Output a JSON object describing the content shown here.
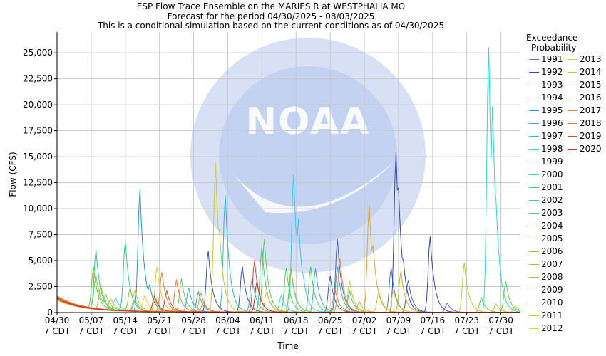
{
  "chart_data": {
    "type": "line",
    "title": [
      "ESP Flow Trace Ensemble on the MARIES R at WESTPHALIA MO",
      "Forecast for the period 04/30/2025 - 08/03/2025",
      "This is a conditional simulation based on the current conditions as of 04/30/2025"
    ],
    "xlabel": "Time",
    "ylabel": "Flow (CFS)",
    "ylim": [
      0,
      27000
    ],
    "xlim_days": [
      0,
      95
    ],
    "yticks": [
      0,
      2500,
      5000,
      7500,
      10000,
      12500,
      15000,
      17500,
      20000,
      22500,
      25000
    ],
    "ytick_labels": [
      "0",
      "2,500",
      "5,000",
      "7,500",
      "10,000",
      "12,500",
      "15,000",
      "17,500",
      "20,000",
      "22,500",
      "25,000"
    ],
    "xticks": [
      {
        "day": 0,
        "l1": "04/30",
        "l2": "7 CDT"
      },
      {
        "day": 7,
        "l1": "05/07",
        "l2": "7 CDT"
      },
      {
        "day": 14,
        "l1": "05/14",
        "l2": "7 CDT"
      },
      {
        "day": 21,
        "l1": "05/21",
        "l2": "7 CDT"
      },
      {
        "day": 28,
        "l1": "05/28",
        "l2": "7 CDT"
      },
      {
        "day": 35,
        "l1": "06/04",
        "l2": "7 CDT"
      },
      {
        "day": 42,
        "l1": "06/11",
        "l2": "7 CDT"
      },
      {
        "day": 49,
        "l1": "06/18",
        "l2": "7 CDT"
      },
      {
        "day": 56,
        "l1": "06/25",
        "l2": "7 CDT"
      },
      {
        "day": 63,
        "l1": "07/02",
        "l2": "7 CDT"
      },
      {
        "day": 70,
        "l1": "07/09",
        "l2": "7 CDT"
      },
      {
        "day": 77,
        "l1": "07/16",
        "l2": "7 CDT"
      },
      {
        "day": 84,
        "l1": "07/23",
        "l2": "7 CDT"
      },
      {
        "day": 91,
        "l1": "07/30",
        "l2": "7 CDT"
      }
    ],
    "grid": true,
    "legend_title": [
      "Exceedance",
      "Probability"
    ],
    "legend_placement": "right",
    "watermark": "NOAA - NATIONAL OCEANIC AND ATMOSPHERIC ADMINISTRATION - U.S. DEPARTMENT OF COMMERCE",
    "series": [
      {
        "name": "1991",
        "color": "#5577dd",
        "peaks": [
          [
            68.5,
            4300
          ],
          [
            80,
            900
          ]
        ]
      },
      {
        "name": "1992",
        "color": "#3344bb",
        "peaks": [
          [
            69.5,
            15500
          ],
          [
            70,
            12000
          ],
          [
            71,
            5000
          ],
          [
            76.5,
            7300
          ]
        ]
      },
      {
        "name": "1993",
        "color": "#4466cc",
        "peaks": [
          [
            57.5,
            7000
          ],
          [
            72,
            3100
          ]
        ]
      },
      {
        "name": "1994",
        "color": "#3355bb",
        "peaks": [
          [
            31,
            5900
          ],
          [
            38,
            4400
          ],
          [
            56,
            3500
          ]
        ]
      },
      {
        "name": "1995",
        "color": "#2299cc",
        "peaks": [
          [
            17,
            11800
          ],
          [
            19,
            2600
          ],
          [
            29,
            1900
          ]
        ]
      },
      {
        "name": "1996",
        "color": "#33aadd",
        "peaks": [
          [
            27,
            2300
          ],
          [
            53,
            4200
          ],
          [
            57.5,
            4400
          ]
        ]
      },
      {
        "name": "1997",
        "color": "#22bbdd",
        "peaks": [
          [
            34.5,
            11200
          ],
          [
            40,
            3300
          ],
          [
            36,
            2100
          ]
        ]
      },
      {
        "name": "1998",
        "color": "#33ccee",
        "peaks": [
          [
            48.5,
            13300
          ],
          [
            49.5,
            9000
          ],
          [
            50.5,
            3500
          ]
        ]
      },
      {
        "name": "1999",
        "color": "#22dddd",
        "peaks": [
          [
            88.5,
            25500
          ],
          [
            89.3,
            20000
          ],
          [
            89.9,
            12000
          ]
        ]
      },
      {
        "name": "2000",
        "color": "#33ddcc",
        "peaks": [
          [
            12,
            1200
          ],
          [
            46,
            1600
          ]
        ]
      },
      {
        "name": "2001",
        "color": "#22ccaa",
        "peaks": [
          [
            8,
            5700
          ],
          [
            16,
            1100
          ]
        ]
      },
      {
        "name": "2002",
        "color": "#33cc99",
        "peaks": [
          [
            14,
            6700
          ],
          [
            42,
            6300
          ]
        ]
      },
      {
        "name": "2003",
        "color": "#44cc88",
        "peaks": [
          [
            48,
            4000
          ],
          [
            60,
            2000
          ]
        ]
      },
      {
        "name": "2004",
        "color": "#55cc66",
        "peaks": [
          [
            25.5,
            3200
          ],
          [
            47,
            4300
          ],
          [
            52,
            4400
          ]
        ]
      },
      {
        "name": "2005",
        "color": "#66cc44",
        "peaks": [
          [
            42.5,
            7000
          ],
          [
            87,
            1400
          ],
          [
            92,
            3000
          ]
        ]
      },
      {
        "name": "2006",
        "color": "#77cc33",
        "peaks": [
          [
            7.5,
            4000
          ],
          [
            15,
            2200
          ]
        ]
      },
      {
        "name": "2007",
        "color": "#88cc33",
        "peaks": [
          [
            9,
            2300
          ],
          [
            48,
            4300
          ]
        ]
      },
      {
        "name": "2008",
        "color": "#99cc44",
        "peaks": [
          [
            8,
            3200
          ],
          [
            10,
            1500
          ]
        ]
      },
      {
        "name": "2009",
        "color": "#aacc33",
        "peaks": [
          [
            11,
            1100
          ],
          [
            20,
            1200
          ],
          [
            90,
            800
          ]
        ]
      },
      {
        "name": "2010",
        "color": "#bbcc33",
        "peaks": [
          [
            83.5,
            4800
          ],
          [
            94,
            600
          ]
        ]
      },
      {
        "name": "2011",
        "color": "#cccc22",
        "peaks": [
          [
            32.5,
            14300
          ],
          [
            33.3,
            8000
          ],
          [
            60,
            3000
          ]
        ]
      },
      {
        "name": "2012",
        "color": "#dddd33",
        "peaks": [
          [
            18,
            1500
          ],
          [
            69,
            2100
          ]
        ]
      },
      {
        "name": "2013",
        "color": "#ddcc33",
        "peaks": [
          [
            20.5,
            4300
          ],
          [
            66,
            2000
          ]
        ]
      },
      {
        "name": "2014",
        "color": "#ddbb33",
        "peaks": [
          [
            16,
            2100
          ],
          [
            43,
            2000
          ]
        ]
      },
      {
        "name": "2015",
        "color": "#ddaa22",
        "peaks": [
          [
            64,
            10300
          ],
          [
            64.8,
            6500
          ],
          [
            70.5,
            4000
          ]
        ]
      },
      {
        "name": "2016",
        "color": "#ee9933",
        "peaks": [
          [
            29.5,
            1800
          ],
          [
            62,
            1000
          ]
        ]
      },
      {
        "name": "2017",
        "color": "#ee8833",
        "peaks": [
          [
            21.5,
            3800
          ],
          [
            58,
            5200
          ],
          [
            30,
            900
          ]
        ]
      },
      {
        "name": "2018",
        "color": "#ee7744",
        "peaks": [
          [
            24.5,
            3100
          ],
          [
            57,
            2200
          ]
        ]
      },
      {
        "name": "2019",
        "color": "#dd4433",
        "peaks": [
          [
            40.5,
            5000
          ],
          [
            22.5,
            2000
          ]
        ]
      },
      {
        "name": "2020",
        "color": "#cc3322",
        "peaks": [
          [
            41,
            3000
          ],
          [
            20,
            1500
          ]
        ]
      }
    ],
    "legend_order": [
      "1991",
      "1992",
      "1993",
      "1994",
      "1995",
      "1996",
      "1997",
      "1998",
      "1999",
      "2000",
      "2001",
      "2002",
      "2003",
      "2004",
      "2005",
      "2006",
      "2007",
      "2008",
      "2009",
      "2010",
      "2011",
      "2012",
      "2013",
      "2014",
      "2015",
      "2016",
      "2017",
      "2018",
      "2019",
      "2020"
    ]
  }
}
